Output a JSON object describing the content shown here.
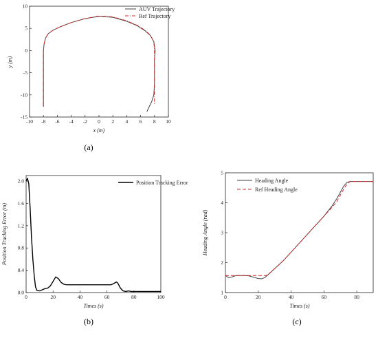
{
  "chart_data": [
    {
      "type": "line",
      "panel_label": "(a)",
      "xlabel": "x (m)",
      "ylabel": "y (m)",
      "xlim": [
        -10,
        10
      ],
      "ylim": [
        -15,
        10
      ],
      "xticks": [
        -10,
        -8,
        -6,
        -4,
        -2,
        0,
        2,
        4,
        6,
        8,
        10
      ],
      "yticks": [
        -15,
        -10,
        -5,
        0,
        5,
        10
      ],
      "grid": false,
      "legend_position": "top-right",
      "series": [
        {
          "name": "AUV Trajectory",
          "color": "#404040",
          "style": "solid",
          "points": [
            [
              -8.0,
              -12.7
            ],
            [
              -8.0,
              -10
            ],
            [
              -8.0,
              -5
            ],
            [
              -8.0,
              0
            ],
            [
              -7.9,
              1.5
            ],
            [
              -7.7,
              2.8
            ],
            [
              -7.3,
              3.8
            ],
            [
              -6.6,
              4.6
            ],
            [
              -5.5,
              5.4
            ],
            [
              -4.0,
              6.3
            ],
            [
              -2.0,
              7.2
            ],
            [
              0.0,
              7.7
            ],
            [
              2.0,
              7.5
            ],
            [
              4.0,
              6.6
            ],
            [
              5.5,
              5.6
            ],
            [
              6.6,
              4.5
            ],
            [
              7.4,
              3.4
            ],
            [
              7.9,
              2.0
            ],
            [
              8.1,
              0.0
            ],
            [
              8.0,
              -2.0
            ],
            [
              8.0,
              -5.0
            ],
            [
              8.0,
              -7.5
            ],
            [
              7.9,
              -10.0
            ],
            [
              7.6,
              -11.5
            ],
            [
              7.2,
              -12.8
            ],
            [
              6.9,
              -13.8
            ]
          ]
        },
        {
          "name": "Ref Trajectory",
          "color": "#d62728",
          "style": "dashdot",
          "points": [
            [
              -8.0,
              -12.5
            ],
            [
              -8.0,
              -10
            ],
            [
              -8.0,
              -5
            ],
            [
              -8.0,
              0
            ],
            [
              -7.9,
              1.5
            ],
            [
              -7.7,
              2.8
            ],
            [
              -7.3,
              3.8
            ],
            [
              -6.6,
              4.6
            ],
            [
              -5.5,
              5.4
            ],
            [
              -4.0,
              6.3
            ],
            [
              -2.0,
              7.2
            ],
            [
              0.0,
              7.8
            ],
            [
              2.0,
              7.6
            ],
            [
              4.0,
              6.7
            ],
            [
              5.5,
              5.7
            ],
            [
              6.6,
              4.6
            ],
            [
              7.4,
              3.5
            ],
            [
              7.9,
              2.0
            ],
            [
              8.0,
              0.0
            ],
            [
              8.0,
              -5.0
            ],
            [
              8.0,
              -10.0
            ],
            [
              8.0,
              -12.2
            ]
          ]
        }
      ]
    },
    {
      "type": "line",
      "panel_label": "(b)",
      "xlabel": "Times (s)",
      "ylabel": "Position Tracking Error (m)",
      "xlim": [
        0,
        100
      ],
      "ylim": [
        0,
        2.1
      ],
      "xticks": [
        0,
        20,
        40,
        60,
        80,
        100
      ],
      "yticks": [
        0.0,
        0.4,
        0.8,
        1.2,
        1.6,
        2.0
      ],
      "grid": false,
      "legend_position": "top-right",
      "series": [
        {
          "name": "Position Tracking Error",
          "color": "#000000",
          "style": "solid",
          "points": [
            [
              0,
              2.0
            ],
            [
              1,
              2.05
            ],
            [
              2,
              1.95
            ],
            [
              3,
              1.5
            ],
            [
              4,
              1.0
            ],
            [
              5,
              0.6
            ],
            [
              6,
              0.3
            ],
            [
              7,
              0.1
            ],
            [
              8,
              0.04
            ],
            [
              10,
              0.03
            ],
            [
              12,
              0.05
            ],
            [
              14,
              0.07
            ],
            [
              16,
              0.08
            ],
            [
              18,
              0.12
            ],
            [
              20,
              0.2
            ],
            [
              22,
              0.28
            ],
            [
              24,
              0.25
            ],
            [
              26,
              0.18
            ],
            [
              28,
              0.15
            ],
            [
              30,
              0.14
            ],
            [
              35,
              0.14
            ],
            [
              40,
              0.14
            ],
            [
              50,
              0.14
            ],
            [
              60,
              0.14
            ],
            [
              63,
              0.14
            ],
            [
              65,
              0.16
            ],
            [
              67,
              0.19
            ],
            [
              68,
              0.17
            ],
            [
              70,
              0.08
            ],
            [
              72,
              0.03
            ],
            [
              74,
              0.02
            ],
            [
              76,
              0.03
            ],
            [
              78,
              0.02
            ],
            [
              80,
              0.02
            ],
            [
              90,
              0.02
            ],
            [
              100,
              0.02
            ]
          ]
        }
      ]
    },
    {
      "type": "line",
      "panel_label": "(c)",
      "xlabel": "Times (s)",
      "ylabel": "Heading Angle (rad)",
      "xlim": [
        0,
        90
      ],
      "ylim": [
        1,
        5
      ],
      "xticks": [
        0,
        20,
        40,
        60,
        80
      ],
      "yticks": [
        1,
        2,
        3,
        4,
        5
      ],
      "grid": false,
      "legend_position": "top-left",
      "series": [
        {
          "name": "Heading Angle",
          "color": "#404040",
          "style": "solid",
          "points": [
            [
              0,
              1.57
            ],
            [
              1,
              1.53
            ],
            [
              2,
              1.5
            ],
            [
              4,
              1.52
            ],
            [
              6,
              1.56
            ],
            [
              8,
              1.57
            ],
            [
              10,
              1.57
            ],
            [
              12,
              1.57
            ],
            [
              14,
              1.56
            ],
            [
              16,
              1.53
            ],
            [
              18,
              1.5
            ],
            [
              20,
              1.47
            ],
            [
              22,
              1.46
            ],
            [
              24,
              1.5
            ],
            [
              25,
              1.55
            ],
            [
              28,
              1.7
            ],
            [
              35,
              2.05
            ],
            [
              40,
              2.35
            ],
            [
              50,
              2.95
            ],
            [
              60,
              3.55
            ],
            [
              65,
              3.9
            ],
            [
              68,
              4.15
            ],
            [
              70,
              4.35
            ],
            [
              72,
              4.55
            ],
            [
              74,
              4.68
            ],
            [
              76,
              4.71
            ],
            [
              80,
              4.71
            ],
            [
              90,
              4.71
            ]
          ]
        },
        {
          "name": "Ref Heading Angle",
          "color": "#d62728",
          "style": "dashed",
          "points": [
            [
              0,
              1.57
            ],
            [
              5,
              1.57
            ],
            [
              10,
              1.57
            ],
            [
              15,
              1.57
            ],
            [
              20,
              1.57
            ],
            [
              25,
              1.57
            ],
            [
              28,
              1.7
            ],
            [
              35,
              2.05
            ],
            [
              40,
              2.35
            ],
            [
              50,
              2.95
            ],
            [
              60,
              3.55
            ],
            [
              65,
              3.85
            ],
            [
              68,
              4.05
            ],
            [
              70,
              4.25
            ],
            [
              72,
              4.45
            ],
            [
              74,
              4.62
            ],
            [
              76,
              4.71
            ],
            [
              80,
              4.71
            ],
            [
              90,
              4.71
            ]
          ]
        }
      ]
    }
  ]
}
